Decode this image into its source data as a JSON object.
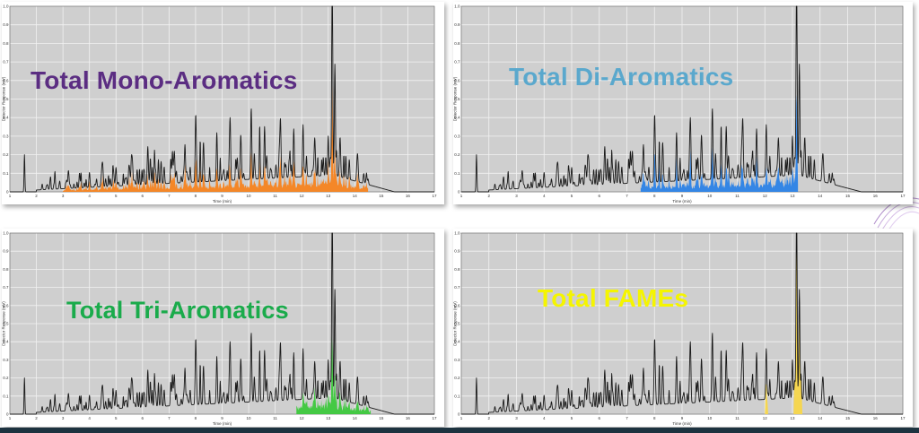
{
  "chart_data": [
    {
      "type": "line",
      "title": "Total Mono-Aromatics",
      "title_color": "#5b2d82",
      "highlight_color": "#f5831f",
      "highlight_region": [
        3.0,
        14.5
      ],
      "xlabel": "Time (min)",
      "ylabel": "Detector Response (mV)",
      "xlim": [
        1,
        17
      ],
      "ylim": [
        0,
        1.0
      ],
      "xticks": [
        "1",
        "2",
        "3",
        "4",
        "5",
        "6",
        "7",
        "8",
        "9",
        "10",
        "11",
        "12",
        "13",
        "14",
        "15",
        "16",
        "17"
      ],
      "yticks": [
        "0",
        "0.1",
        "0.2",
        "0.3",
        "0.4",
        "0.5",
        "0.6",
        "0.7",
        "0.8",
        "0.9",
        "1.0"
      ]
    },
    {
      "type": "line",
      "title": "Total Di-Aromatics",
      "title_color": "#5aa8cd",
      "highlight_color": "#2b82e6",
      "highlight_region": [
        7.5,
        13.2
      ],
      "xlabel": "Time (min)",
      "ylabel": "Detector Response (mV)",
      "xlim": [
        1,
        17
      ],
      "ylim": [
        0,
        1.0
      ],
      "xticks": [
        "1",
        "2",
        "3",
        "4",
        "5",
        "6",
        "7",
        "8",
        "9",
        "10",
        "11",
        "12",
        "13",
        "14",
        "15",
        "16",
        "17"
      ],
      "yticks": [
        "0",
        "0.1",
        "0.2",
        "0.3",
        "0.4",
        "0.5",
        "0.6",
        "0.7",
        "0.8",
        "0.9",
        "1.0"
      ]
    },
    {
      "type": "line",
      "title": "Total Tri-Aromatics",
      "title_color": "#1aab4b",
      "highlight_color": "#3cc83c",
      "highlight_region": [
        11.8,
        14.6
      ],
      "xlabel": "Time (min)",
      "ylabel": "Detector Response (mV)",
      "xlim": [
        1,
        17
      ],
      "ylim": [
        0,
        1.0
      ],
      "xticks": [
        "1",
        "2",
        "3",
        "4",
        "5",
        "6",
        "7",
        "8",
        "9",
        "10",
        "11",
        "12",
        "13",
        "14",
        "15",
        "16",
        "17"
      ],
      "yticks": [
        "0",
        "0.1",
        "0.2",
        "0.3",
        "0.4",
        "0.5",
        "0.6",
        "0.7",
        "0.8",
        "0.9",
        "1.0"
      ]
    },
    {
      "type": "line",
      "title": "Total FAMEs",
      "title_color": "#f5f500",
      "highlight_color": "#f7d64a",
      "highlight_region": [
        12.0,
        13.5
      ],
      "xlabel": "Time (min)",
      "ylabel": "Detector Response (mV)",
      "xlim": [
        1,
        17
      ],
      "ylim": [
        0,
        1.0
      ],
      "xticks": [
        "1",
        "2",
        "3",
        "4",
        "5",
        "6",
        "7",
        "8",
        "9",
        "10",
        "11",
        "12",
        "13",
        "14",
        "15",
        "16",
        "17"
      ],
      "yticks": [
        "0",
        "0.1",
        "0.2",
        "0.3",
        "0.4",
        "0.5",
        "0.6",
        "0.7",
        "0.8",
        "0.9",
        "1.0"
      ]
    }
  ],
  "panels": [
    {
      "label": "Total Mono-Aromatics"
    },
    {
      "label": "Total Di-Aromatics"
    },
    {
      "label": "Total Tri-Aromatics"
    },
    {
      "label": "Total FAMEs"
    }
  ]
}
